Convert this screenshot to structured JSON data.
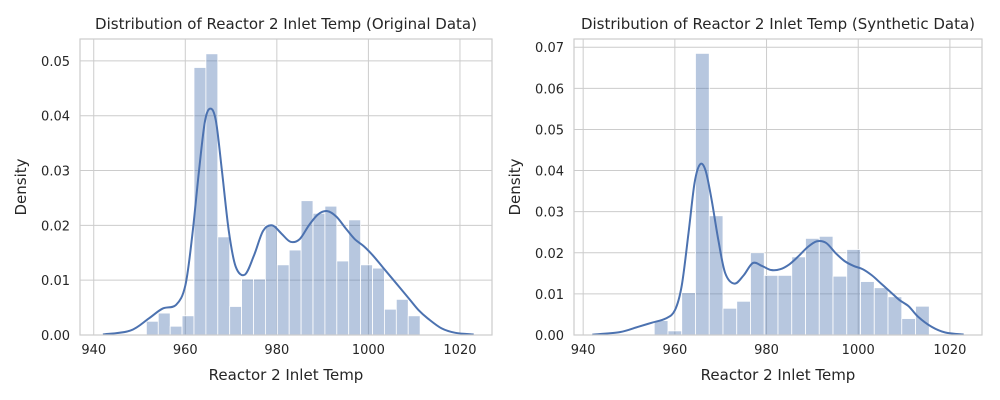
{
  "chart_data": [
    {
      "type": "bar",
      "title": "Distribution of Reactor 2 Inlet Temp (Original Data)",
      "xlabel": "Reactor 2 Inlet Temp",
      "ylabel": "Density",
      "xlim": [
        937,
        1027
      ],
      "ylim": [
        0,
        0.054
      ],
      "xticks": [
        940,
        960,
        980,
        1000,
        1020
      ],
      "yticks": [
        0.0,
        0.01,
        0.02,
        0.03,
        0.04,
        0.05
      ],
      "ytick_labels": [
        "0.00",
        "0.01",
        "0.02",
        "0.03",
        "0.04",
        "0.05"
      ],
      "grid": true,
      "bins": [
        {
          "x0": 951.5,
          "x1": 954.1,
          "value": 0.0025
        },
        {
          "x0": 954.1,
          "x1": 956.7,
          "value": 0.004
        },
        {
          "x0": 956.7,
          "x1": 959.3,
          "value": 0.0016
        },
        {
          "x0": 959.3,
          "x1": 961.9,
          "value": 0.0035
        },
        {
          "x0": 961.9,
          "x1": 964.5,
          "value": 0.0488
        },
        {
          "x0": 964.5,
          "x1": 967.1,
          "value": 0.0513
        },
        {
          "x0": 967.1,
          "x1": 969.7,
          "value": 0.0179
        },
        {
          "x0": 969.7,
          "x1": 972.3,
          "value": 0.0052
        },
        {
          "x0": 972.3,
          "x1": 974.9,
          "value": 0.0102
        },
        {
          "x0": 974.9,
          "x1": 977.5,
          "value": 0.0102
        },
        {
          "x0": 977.5,
          "x1": 980.1,
          "value": 0.02
        },
        {
          "x0": 980.1,
          "x1": 982.7,
          "value": 0.0128
        },
        {
          "x0": 982.7,
          "x1": 985.3,
          "value": 0.0155
        },
        {
          "x0": 985.3,
          "x1": 987.9,
          "value": 0.0245
        },
        {
          "x0": 987.9,
          "x1": 990.5,
          "value": 0.0222
        },
        {
          "x0": 990.5,
          "x1": 993.1,
          "value": 0.0235
        },
        {
          "x0": 993.1,
          "x1": 995.7,
          "value": 0.0135
        },
        {
          "x0": 995.7,
          "x1": 998.3,
          "value": 0.021
        },
        {
          "x0": 998.3,
          "x1": 1000.9,
          "value": 0.0128
        },
        {
          "x0": 1000.9,
          "x1": 1003.5,
          "value": 0.0122
        },
        {
          "x0": 1003.5,
          "x1": 1006.1,
          "value": 0.0047
        },
        {
          "x0": 1006.1,
          "x1": 1008.7,
          "value": 0.0065
        },
        {
          "x0": 1008.7,
          "x1": 1011.3,
          "value": 0.0035
        }
      ],
      "kde": {
        "x": [
          942,
          948,
          952,
          955,
          958,
          960,
          961.5,
          963,
          964.3,
          965.5,
          966.7,
          968,
          969.5,
          971,
          973,
          975,
          977,
          979,
          981,
          983,
          985,
          987,
          989,
          991,
          993,
          995,
          997,
          999,
          1001,
          1003,
          1005,
          1007,
          1009,
          1011,
          1013,
          1016,
          1019,
          1023
        ],
        "y": [
          0.0001,
          0.0008,
          0.003,
          0.0048,
          0.0055,
          0.009,
          0.018,
          0.03,
          0.039,
          0.0413,
          0.039,
          0.03,
          0.019,
          0.0125,
          0.011,
          0.0145,
          0.019,
          0.02,
          0.0185,
          0.017,
          0.0175,
          0.02,
          0.022,
          0.0226,
          0.0216,
          0.0195,
          0.0175,
          0.0162,
          0.0145,
          0.0125,
          0.0105,
          0.0085,
          0.0065,
          0.0045,
          0.003,
          0.0012,
          0.0004,
          0.0001
        ]
      }
    },
    {
      "type": "bar",
      "title": "Distribution of Reactor 2 Inlet Temp (Synthetic Data)",
      "xlabel": "Reactor 2 Inlet Temp",
      "ylabel": "Density",
      "xlim": [
        938,
        1027
      ],
      "ylim": [
        0,
        0.072
      ],
      "xticks": [
        940,
        960,
        980,
        1000,
        1020
      ],
      "yticks": [
        0.0,
        0.01,
        0.02,
        0.03,
        0.04,
        0.05,
        0.06,
        0.07
      ],
      "ytick_labels": [
        "0.00",
        "0.01",
        "0.02",
        "0.03",
        "0.04",
        "0.05",
        "0.06",
        "0.07"
      ],
      "grid": true,
      "bins": [
        {
          "x0": 955.5,
          "x1": 958.5,
          "value": 0.0035
        },
        {
          "x0": 958.5,
          "x1": 961.5,
          "value": 0.001
        },
        {
          "x0": 961.5,
          "x1": 964.5,
          "value": 0.0103
        },
        {
          "x0": 964.5,
          "x1": 967.5,
          "value": 0.0685
        },
        {
          "x0": 967.5,
          "x1": 970.5,
          "value": 0.029
        },
        {
          "x0": 970.5,
          "x1": 973.5,
          "value": 0.0065
        },
        {
          "x0": 973.5,
          "x1": 976.5,
          "value": 0.0082
        },
        {
          "x0": 976.5,
          "x1": 979.5,
          "value": 0.02
        },
        {
          "x0": 979.5,
          "x1": 982.5,
          "value": 0.0145
        },
        {
          "x0": 982.5,
          "x1": 985.5,
          "value": 0.0145
        },
        {
          "x0": 985.5,
          "x1": 988.5,
          "value": 0.019
        },
        {
          "x0": 988.5,
          "x1": 991.5,
          "value": 0.0235
        },
        {
          "x0": 991.5,
          "x1": 994.5,
          "value": 0.024
        },
        {
          "x0": 994.5,
          "x1": 997.5,
          "value": 0.0143
        },
        {
          "x0": 997.5,
          "x1": 1000.5,
          "value": 0.0208
        },
        {
          "x0": 1000.5,
          "x1": 1003.5,
          "value": 0.013
        },
        {
          "x0": 1003.5,
          "x1": 1006.5,
          "value": 0.0115
        },
        {
          "x0": 1006.5,
          "x1": 1009.5,
          "value": 0.0093
        },
        {
          "x0": 1009.5,
          "x1": 1012.5,
          "value": 0.004
        },
        {
          "x0": 1012.5,
          "x1": 1015.5,
          "value": 0.007
        }
      ],
      "kde": {
        "x": [
          942,
          948,
          952,
          955,
          958,
          960,
          961.5,
          963,
          964.3,
          965.5,
          966.7,
          968,
          969.5,
          971,
          973,
          975,
          977,
          979,
          981,
          983,
          985,
          987,
          989,
          991,
          993,
          995,
          997,
          999,
          1001,
          1003,
          1005,
          1007,
          1009,
          1011,
          1013,
          1016,
          1019,
          1023
        ],
        "y": [
          0.0001,
          0.0007,
          0.002,
          0.003,
          0.004,
          0.006,
          0.012,
          0.025,
          0.037,
          0.0415,
          0.04,
          0.033,
          0.023,
          0.015,
          0.0125,
          0.0145,
          0.0175,
          0.0168,
          0.0158,
          0.016,
          0.0172,
          0.0192,
          0.0214,
          0.0228,
          0.0224,
          0.02,
          0.018,
          0.0168,
          0.016,
          0.0145,
          0.0125,
          0.0105,
          0.0085,
          0.007,
          0.0045,
          0.002,
          0.0006,
          0.0001
        ]
      }
    }
  ]
}
